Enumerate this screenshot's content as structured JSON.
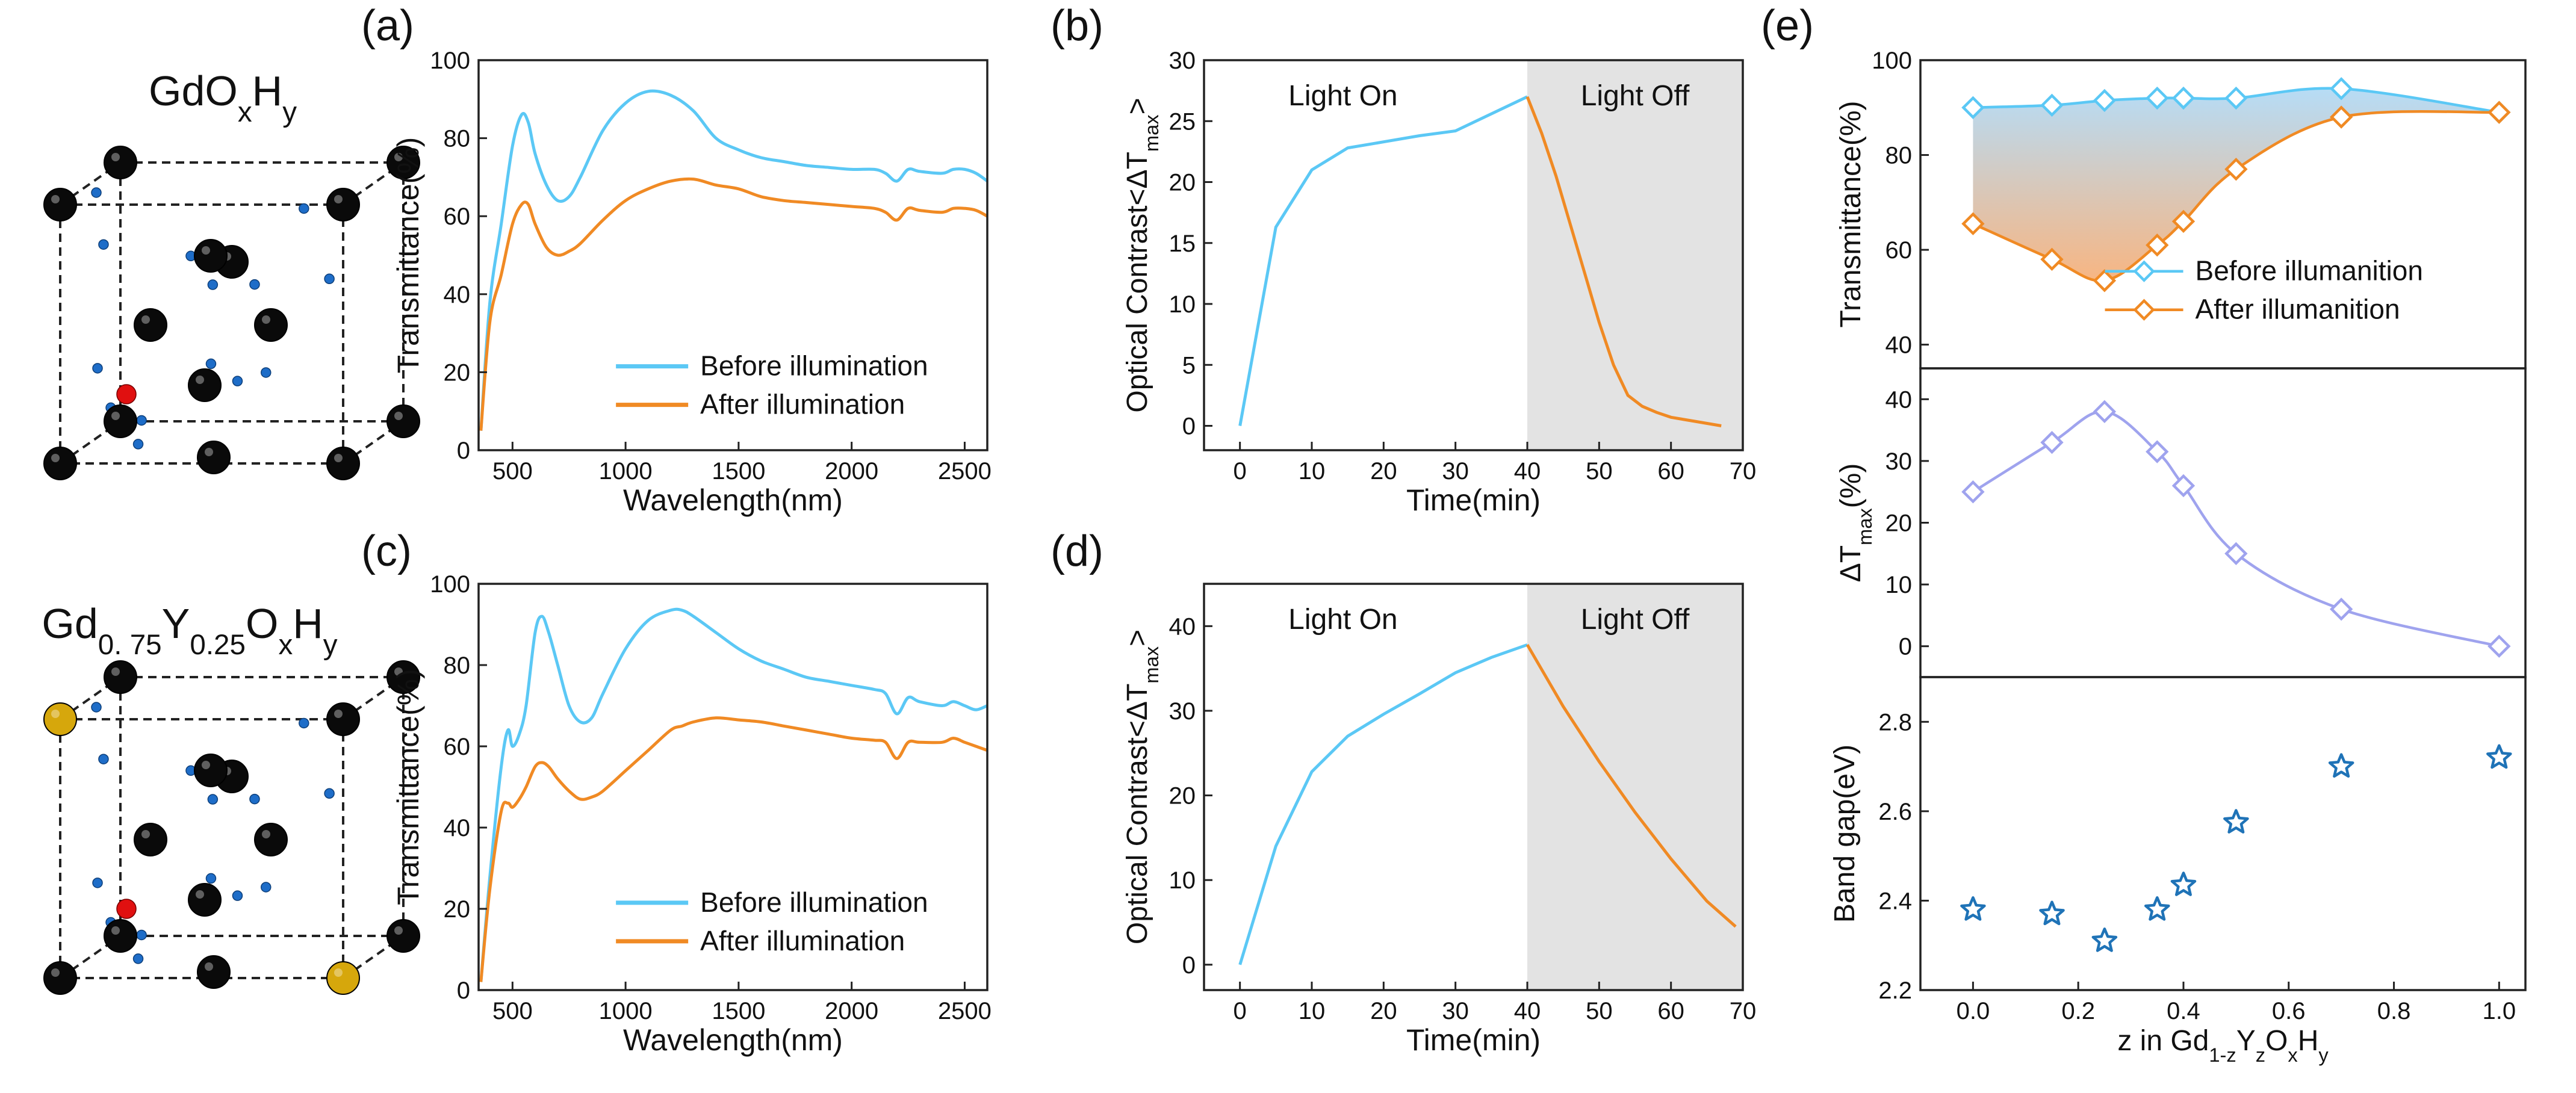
{
  "figure": {
    "structures": [
      {
        "panel": "top",
        "label_base": "GdO",
        "sub1": "x",
        "mid": "H",
        "sub2": "y"
      },
      {
        "panel": "bottom",
        "label_parts": [
          "Gd",
          "0. 75",
          "Y",
          "0.25",
          "O",
          "x",
          "H",
          "y"
        ]
      }
    ],
    "colors": {
      "before": "#5bc8f5",
      "after": "#f08a24",
      "delta": "#9fa3ee",
      "bandgap": "#1f73b7",
      "dark_shade": "#e3e3e3",
      "fill_top": "#a9d6f5",
      "fill_bottom": "#f6a86c"
    }
  },
  "chart_data": [
    {
      "id": "a",
      "panel_label": "(a)",
      "type": "line",
      "xlabel": "Wavelength(nm)",
      "ylabel": "Transmittance(%)",
      "xlim": [
        350,
        2600
      ],
      "ylim": [
        0,
        100
      ],
      "xticks": [
        500,
        1000,
        1500,
        2000,
        2500
      ],
      "yticks": [
        0,
        20,
        40,
        60,
        80,
        100
      ],
      "legend": [
        "Before illumination",
        "After illumination"
      ],
      "legend_position": "lower-right",
      "series": [
        {
          "name": "Before illumination",
          "color": "#5bc8f5",
          "x": [
            360,
            400,
            450,
            500,
            540,
            570,
            600,
            650,
            700,
            750,
            800,
            900,
            1000,
            1100,
            1200,
            1300,
            1400,
            1500,
            1600,
            1700,
            1800,
            1900,
            2000,
            2100,
            2150,
            2200,
            2250,
            2300,
            2400,
            2450,
            2500,
            2550,
            2600
          ],
          "y": [
            5,
            38,
            58,
            78,
            86,
            84,
            76,
            68,
            64,
            65,
            70,
            82,
            89,
            92,
            91,
            87,
            80,
            77,
            75,
            74,
            73,
            72.5,
            72,
            72,
            71,
            69,
            72,
            71.5,
            71,
            72,
            72,
            71,
            69
          ]
        },
        {
          "name": "After illumination",
          "color": "#f08a24",
          "x": [
            360,
            400,
            450,
            500,
            540,
            570,
            600,
            650,
            700,
            750,
            800,
            900,
            1000,
            1100,
            1200,
            1300,
            1400,
            1500,
            1600,
            1700,
            1800,
            1900,
            2000,
            2100,
            2150,
            2200,
            2250,
            2300,
            2400,
            2450,
            2500,
            2550,
            2600
          ],
          "y": [
            5,
            33,
            45,
            58,
            63,
            63,
            58,
            52,
            50,
            51,
            53,
            59,
            64,
            67,
            69,
            69.5,
            68,
            67,
            65,
            64,
            63.5,
            63,
            62.5,
            62,
            61,
            59,
            62,
            61.5,
            61,
            62,
            62,
            61.5,
            60
          ]
        }
      ]
    },
    {
      "id": "b",
      "panel_label": "(b)",
      "type": "line",
      "xlabel": "Time(min)",
      "ylabel": "Optical Contrast<ΔT",
      "ylabel_sub": "max",
      "ylabel_end": ">",
      "xlim": [
        -5,
        70
      ],
      "ylim": [
        -2,
        30
      ],
      "xticks": [
        0,
        10,
        20,
        30,
        40,
        50,
        60,
        70
      ],
      "yticks": [
        0,
        5,
        10,
        15,
        20,
        25,
        30
      ],
      "shade_from": 40,
      "annotations": [
        "Light On",
        "Light Off"
      ],
      "series": [
        {
          "name": "Light On",
          "color": "#5bc8f5",
          "x": [
            0,
            5,
            10,
            15,
            20,
            25,
            30,
            35,
            40
          ],
          "y": [
            0,
            16.3,
            21,
            22.8,
            23.3,
            23.8,
            24.2,
            25.6,
            27
          ]
        },
        {
          "name": "Light Off",
          "color": "#f08a24",
          "x": [
            40,
            42,
            44,
            46,
            48,
            50,
            52,
            54,
            56,
            58,
            60,
            63,
            67
          ],
          "y": [
            27,
            24,
            20.5,
            16.5,
            12.5,
            8.5,
            5,
            2.5,
            1.6,
            1.1,
            0.7,
            0.4,
            0
          ]
        }
      ]
    },
    {
      "id": "c",
      "panel_label": "(c)",
      "type": "line",
      "xlabel": "Wavelength(nm)",
      "ylabel": "Transmittance(%)",
      "xlim": [
        350,
        2600
      ],
      "ylim": [
        0,
        100
      ],
      "xticks": [
        500,
        1000,
        1500,
        2000,
        2500
      ],
      "yticks": [
        0,
        20,
        40,
        60,
        80,
        100
      ],
      "legend": [
        "Before illumination",
        "After illumination"
      ],
      "legend_position": "lower-right",
      "series": [
        {
          "name": "Before illumination",
          "color": "#5bc8f5",
          "x": [
            360,
            400,
            450,
            480,
            500,
            530,
            560,
            600,
            630,
            660,
            700,
            750,
            800,
            850,
            900,
            1000,
            1100,
            1200,
            1250,
            1300,
            1400,
            1500,
            1600,
            1700,
            1800,
            1900,
            2000,
            2100,
            2150,
            2200,
            2250,
            2300,
            2400,
            2450,
            2500,
            2550,
            2600
          ],
          "y": [
            2,
            28,
            55,
            64,
            60,
            63,
            70,
            88,
            92,
            88,
            80,
            70,
            66,
            67,
            73,
            84,
            91,
            93.5,
            93.5,
            92,
            88,
            84,
            81,
            79,
            77,
            76,
            75,
            74,
            73,
            68,
            72,
            71,
            70,
            71,
            70,
            69,
            70
          ]
        },
        {
          "name": "After illumination",
          "color": "#f08a24",
          "x": [
            360,
            400,
            450,
            480,
            500,
            530,
            560,
            600,
            630,
            660,
            700,
            750,
            800,
            850,
            900,
            1000,
            1100,
            1200,
            1250,
            1300,
            1400,
            1500,
            1600,
            1700,
            1800,
            1900,
            2000,
            2100,
            2150,
            2200,
            2250,
            2300,
            2400,
            2450,
            2500,
            2550,
            2600
          ],
          "y": [
            2,
            25,
            44,
            46,
            45,
            47,
            50,
            55,
            56,
            55,
            52,
            49,
            47,
            47.5,
            49,
            54,
            59,
            64,
            65,
            66,
            67,
            66.5,
            66,
            65,
            64,
            63,
            62,
            61.5,
            61,
            57,
            61,
            61,
            61,
            62,
            61,
            60,
            59
          ]
        }
      ]
    },
    {
      "id": "d",
      "panel_label": "(d)",
      "type": "line",
      "xlabel": "Time(min)",
      "ylabel": "Optical Contrast<ΔT",
      "ylabel_sub": "max",
      "ylabel_end": ">",
      "xlim": [
        -5,
        70
      ],
      "ylim": [
        -3,
        45
      ],
      "xticks": [
        0,
        10,
        20,
        30,
        40,
        50,
        60,
        70
      ],
      "yticks": [
        0,
        10,
        20,
        30,
        40
      ],
      "shade_from": 40,
      "annotations": [
        "Light On",
        "Light Off"
      ],
      "series": [
        {
          "name": "Light On",
          "color": "#5bc8f5",
          "x": [
            0,
            5,
            10,
            15,
            20,
            25,
            30,
            35,
            40
          ],
          "y": [
            0,
            14,
            22.8,
            27,
            29.6,
            32,
            34.5,
            36.3,
            37.8
          ]
        },
        {
          "name": "Light Off",
          "color": "#f08a24",
          "x": [
            40,
            45,
            50,
            55,
            60,
            65,
            69
          ],
          "y": [
            37.8,
            30.5,
            24,
            18,
            12.5,
            7.5,
            4.5
          ]
        }
      ]
    },
    {
      "id": "e-top",
      "panel_label": "(e)",
      "type": "line",
      "ylabel": "Transmittance(%)",
      "xlim": [
        -0.1,
        1.05
      ],
      "ylim": [
        35,
        100
      ],
      "yticks": [
        40,
        60,
        80,
        100
      ],
      "legend": [
        "Before illumanition",
        "After illumanition"
      ],
      "legend_position": "lower-right",
      "series": [
        {
          "name": "Before illumanition",
          "color": "#5bc8f5",
          "marker": "diamond",
          "x": [
            0,
            0.15,
            0.25,
            0.35,
            0.4,
            0.5,
            0.7,
            1.0
          ],
          "y": [
            90,
            90.5,
            91.5,
            92,
            92,
            92,
            94,
            89
          ]
        },
        {
          "name": "After illumanition",
          "color": "#f08a24",
          "marker": "diamond",
          "x": [
            0,
            0.15,
            0.25,
            0.35,
            0.4,
            0.5,
            0.7,
            1.0
          ],
          "y": [
            65.5,
            58,
            53.5,
            61,
            66,
            77,
            88,
            89
          ]
        }
      ]
    },
    {
      "id": "e-mid",
      "type": "line",
      "ylabel": "ΔT",
      "ylabel_sub": "max",
      "ylabel_end": "(%)",
      "xlim": [
        -0.1,
        1.05
      ],
      "ylim": [
        -5,
        45
      ],
      "yticks": [
        0,
        10,
        20,
        30,
        40
      ],
      "series": [
        {
          "name": "ΔTmax",
          "color": "#9fa3ee",
          "marker": "diamond",
          "x": [
            0,
            0.15,
            0.25,
            0.35,
            0.4,
            0.5,
            0.7,
            1.0
          ],
          "y": [
            25,
            33,
            38,
            31.5,
            26,
            15,
            6,
            0
          ]
        }
      ]
    },
    {
      "id": "e-bot",
      "type": "scatter",
      "xlabel": "z in Gd",
      "xlabel_parts": [
        "z in Gd",
        "1-z",
        "Y",
        "z",
        "O",
        "x",
        "H",
        "y"
      ],
      "ylabel": "Band gap(eV)",
      "xlim": [
        -0.1,
        1.05
      ],
      "ylim": [
        2.2,
        2.9
      ],
      "xticks": [
        0.0,
        0.2,
        0.4,
        0.6,
        0.8,
        1.0
      ],
      "xtick_labels": [
        "0.0",
        "0.2",
        "0.4",
        "0.6",
        "0.8",
        "1.0"
      ],
      "yticks": [
        2.2,
        2.4,
        2.6,
        2.8
      ],
      "ytick_labels": [
        "2.2",
        "2.4",
        "2.6",
        "2.8"
      ],
      "series": [
        {
          "name": "Band gap",
          "color": "#1f73b7",
          "marker": "star",
          "x": [
            0,
            0.15,
            0.25,
            0.35,
            0.4,
            0.5,
            0.7,
            1.0
          ],
          "y": [
            2.38,
            2.37,
            2.31,
            2.38,
            2.435,
            2.575,
            2.7,
            2.72
          ]
        }
      ]
    }
  ]
}
